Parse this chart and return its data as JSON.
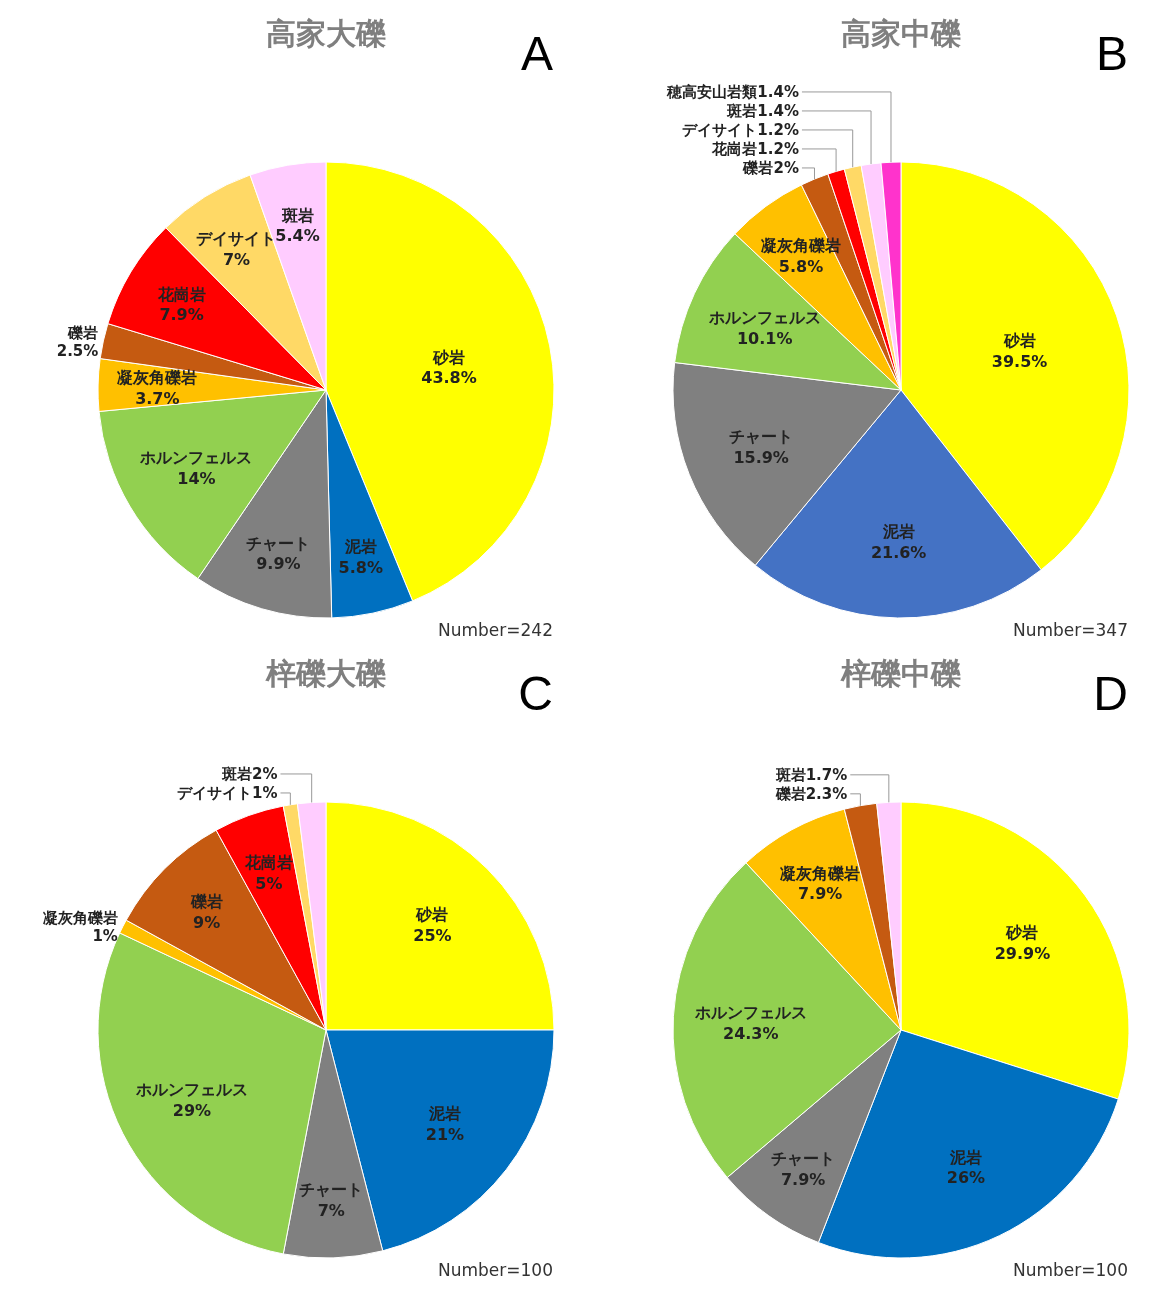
{
  "chart_data": [
    {
      "type": "pie",
      "title": "高家大礫",
      "categories": [
        "砂岩",
        "泥岩",
        "チャート",
        "ホルンフェルス",
        "凝灰角礫岩",
        "礫岩",
        "花崗岩",
        "デイサイト",
        "斑岩"
      ],
      "values": [
        43.8,
        5.8,
        9.9,
        14,
        3.7,
        2.5,
        7.9,
        7,
        5.4
      ],
      "value_labels": [
        "43.8%",
        "5.8%",
        "9.9%",
        "14%",
        "3.7%",
        "2.5%",
        "7.9%",
        "7%",
        "5.4%"
      ],
      "colors": [
        "#ffff00",
        "#0070c0",
        "#808080",
        "#92d050",
        "#ffc000",
        "#c55a11",
        "#ff0000",
        "#ffd966",
        "#ffccff"
      ],
      "annotations": [
        "A",
        "Number=242"
      ]
    },
    {
      "type": "pie",
      "title": "高家中礫",
      "categories": [
        "砂岩",
        "泥岩",
        "チャート",
        "ホルンフェルス",
        "凝灰角礫岩",
        "礫岩",
        "花崗岩",
        "デイサイト",
        "斑岩",
        "穂高安山岩類"
      ],
      "values": [
        39.5,
        21.6,
        15.9,
        10.1,
        5.8,
        2,
        1.2,
        1.2,
        1.4,
        1.4
      ],
      "value_labels": [
        "39.5%",
        "21.6%",
        "15.9%",
        "10.1%",
        "5.8%",
        "2%",
        "1.2%",
        "1.2%",
        "1.4%",
        "1.4%"
      ],
      "colors": [
        "#ffff00",
        "#4472c4",
        "#808080",
        "#92d050",
        "#ffc000",
        "#c55a11",
        "#ff0000",
        "#ffd966",
        "#ffccff",
        "#ff33cc"
      ],
      "annotations": [
        "B",
        "Number=347"
      ]
    },
    {
      "type": "pie",
      "title": "梓礫大礫",
      "categories": [
        "砂岩",
        "泥岩",
        "チャート",
        "ホルンフェルス",
        "凝灰角礫岩",
        "礫岩",
        "花崗岩",
        "デイサイト",
        "斑岩"
      ],
      "values": [
        25,
        21,
        7,
        29,
        1,
        9,
        5,
        1,
        2
      ],
      "value_labels": [
        "25%",
        "21%",
        "7%",
        "29%",
        "1%",
        "9%",
        "5%",
        "1%",
        "2%"
      ],
      "colors": [
        "#ffff00",
        "#0070c0",
        "#808080",
        "#92d050",
        "#ffc000",
        "#c55a11",
        "#ff0000",
        "#ffd966",
        "#ffccff"
      ],
      "annotations": [
        "C",
        "Number=100"
      ]
    },
    {
      "type": "pie",
      "title": "梓礫中礫",
      "categories": [
        "砂岩",
        "泥岩",
        "チャート",
        "ホルンフェルス",
        "凝灰角礫岩",
        "礫岩",
        "斑岩"
      ],
      "values": [
        29.9,
        26,
        7.9,
        24.3,
        7.9,
        2.3,
        1.7
      ],
      "value_labels": [
        "29.9%",
        "26%",
        "7.9%",
        "24.3%",
        "7.9%",
        "2.3%",
        "1.7%"
      ],
      "colors": [
        "#ffff00",
        "#0070c0",
        "#808080",
        "#92d050",
        "#ffc000",
        "#c55a11",
        "#ffccff"
      ],
      "annotations": [
        "D",
        "Number=100"
      ]
    }
  ]
}
